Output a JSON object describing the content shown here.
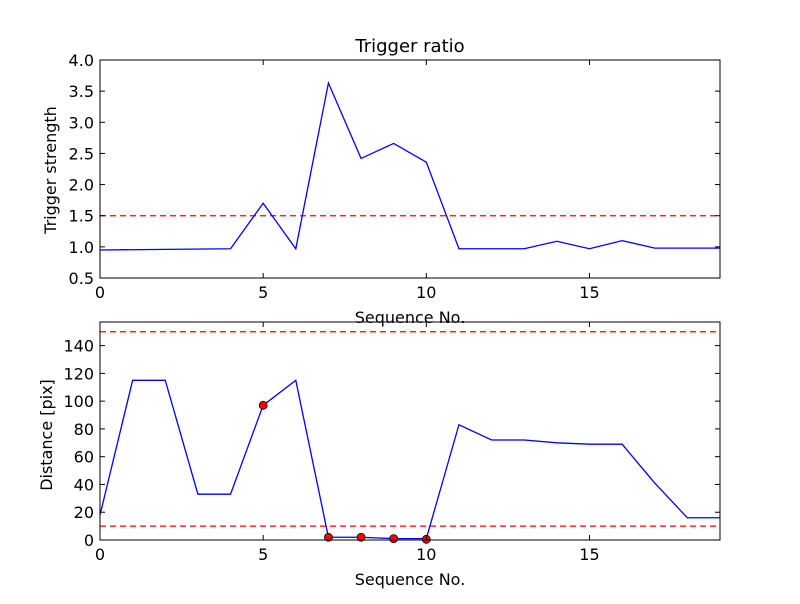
{
  "chart_data": [
    {
      "type": "line",
      "title": "Trigger ratio",
      "xlabel": "Sequence No.",
      "ylabel": "Trigger strength",
      "xlim": [
        0,
        19
      ],
      "ylim": [
        0.5,
        4.0
      ],
      "xticks": [
        0,
        5,
        10,
        15
      ],
      "yticks": [
        0.5,
        1.0,
        1.5,
        2.0,
        2.5,
        3.0,
        3.5,
        4.0
      ],
      "ytick_labels": [
        "0.5",
        "1.0",
        "1.5",
        "2.0",
        "2.5",
        "3.0",
        "3.5",
        "4.0"
      ],
      "series": [
        {
          "color": "#0000ff",
          "x": [
            0,
            4,
            5,
            6,
            7,
            8,
            9,
            10,
            11,
            13,
            14,
            15,
            16,
            17,
            19
          ],
          "y": [
            0.95,
            0.97,
            1.7,
            0.97,
            3.63,
            2.42,
            2.66,
            2.36,
            0.97,
            0.97,
            1.09,
            0.97,
            1.1,
            0.98,
            0.98
          ]
        }
      ],
      "threshold_lines": [
        {
          "y": 1.5,
          "color": "#ff0000",
          "style": "dashed"
        }
      ],
      "grid": false
    },
    {
      "type": "line",
      "title": "",
      "xlabel": "Sequence No.",
      "ylabel": "Distance [pix]",
      "xlim": [
        0,
        19
      ],
      "ylim": [
        0,
        157
      ],
      "xticks": [
        0,
        5,
        10,
        15
      ],
      "yticks": [
        0,
        20,
        40,
        60,
        80,
        100,
        120,
        140
      ],
      "ytick_labels": [
        "0",
        "20",
        "40",
        "60",
        "80",
        "100",
        "120",
        "140"
      ],
      "series": [
        {
          "color": "#0000ff",
          "x": [
            0,
            1,
            2,
            3,
            4,
            5,
            6,
            7,
            8,
            9,
            10,
            11,
            12,
            13,
            14,
            15,
            16,
            17,
            18,
            19
          ],
          "y": [
            18,
            115,
            115,
            33,
            33,
            97,
            115,
            2,
            2,
            1,
            1,
            83,
            72,
            72,
            70,
            69,
            69,
            41,
            16,
            16
          ]
        }
      ],
      "markers": {
        "color": "#ff0000",
        "x": [
          5,
          7,
          8,
          9,
          10
        ],
        "y": [
          97,
          2,
          2,
          1,
          0.5
        ]
      },
      "threshold_lines": [
        {
          "y": 150,
          "color": "#ff0000",
          "style": "dashed"
        },
        {
          "y": 10,
          "color": "#ff0000",
          "style": "dashed"
        }
      ],
      "grid": false
    }
  ]
}
